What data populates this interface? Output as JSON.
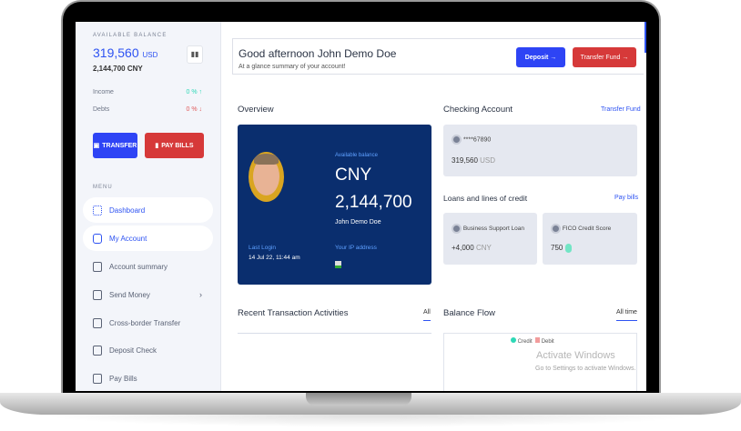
{
  "sidebar": {
    "available_label": "AVAILABLE BALANCE",
    "balance": "319,560",
    "balance_currency": "USD",
    "balance_cny": "2,144,700 CNY",
    "income_label": "Income",
    "income_value": "0 % ↑",
    "debts_label": "Debts",
    "debts_value": "0 % ↓",
    "transfer_label": "TRANSFER",
    "pay_bills_label": "PAY BILLS",
    "menu_label": "MENU",
    "items": [
      {
        "label": "Dashboard",
        "icon": "grid-icon"
      },
      {
        "label": "My Account",
        "icon": "user-icon"
      },
      {
        "label": "Account summary",
        "icon": "document-icon"
      },
      {
        "label": "Send Money",
        "icon": "send-icon"
      },
      {
        "label": "Cross-border Transfer",
        "icon": "transfer-icon"
      },
      {
        "label": "Deposit Check",
        "icon": "check-icon"
      },
      {
        "label": "Pay Bills",
        "icon": "bill-icon"
      }
    ]
  },
  "header": {
    "greeting": "Good afternoon John Demo Doe",
    "subtitle": "At a glance summary of your account!",
    "deposit_label": "Deposit →",
    "transfer_label": "Transfer Fund →"
  },
  "overview": {
    "title": "Overview",
    "available_label": "Available balance",
    "currency": "CNY",
    "amount": "2,144,700",
    "name": "John Demo Doe",
    "last_login_label": "Last Login",
    "last_login": "14 Jul 22, 11:44 am",
    "ip_label": "Your IP address"
  },
  "checking": {
    "title": "Checking Account",
    "link": "Transfer Fund",
    "account": "****67890",
    "amount": "319,560",
    "currency": "USD"
  },
  "loans": {
    "title": "Loans and lines of credit",
    "link": "Pay bills",
    "loan_label": "Business Support Loan",
    "loan_amount": "+4,000",
    "loan_currency": "CNY",
    "fico_label": "FICO Credit Score",
    "fico_value": "750"
  },
  "transactions": {
    "title": "Recent Transaction Activities",
    "filter": "All"
  },
  "balance_flow": {
    "title": "Balance Flow",
    "filter": "All time",
    "legend": [
      "Credit",
      "Debit"
    ]
  },
  "watermark": {
    "title": "Activate Windows",
    "subtitle": "Go to Settings to activate Windows."
  },
  "colors": {
    "accent": "#2e53f2",
    "danger": "#d63939",
    "navy": "#0a2e6e",
    "credit": "#2ed8b6",
    "debit": "#f29c9c"
  }
}
